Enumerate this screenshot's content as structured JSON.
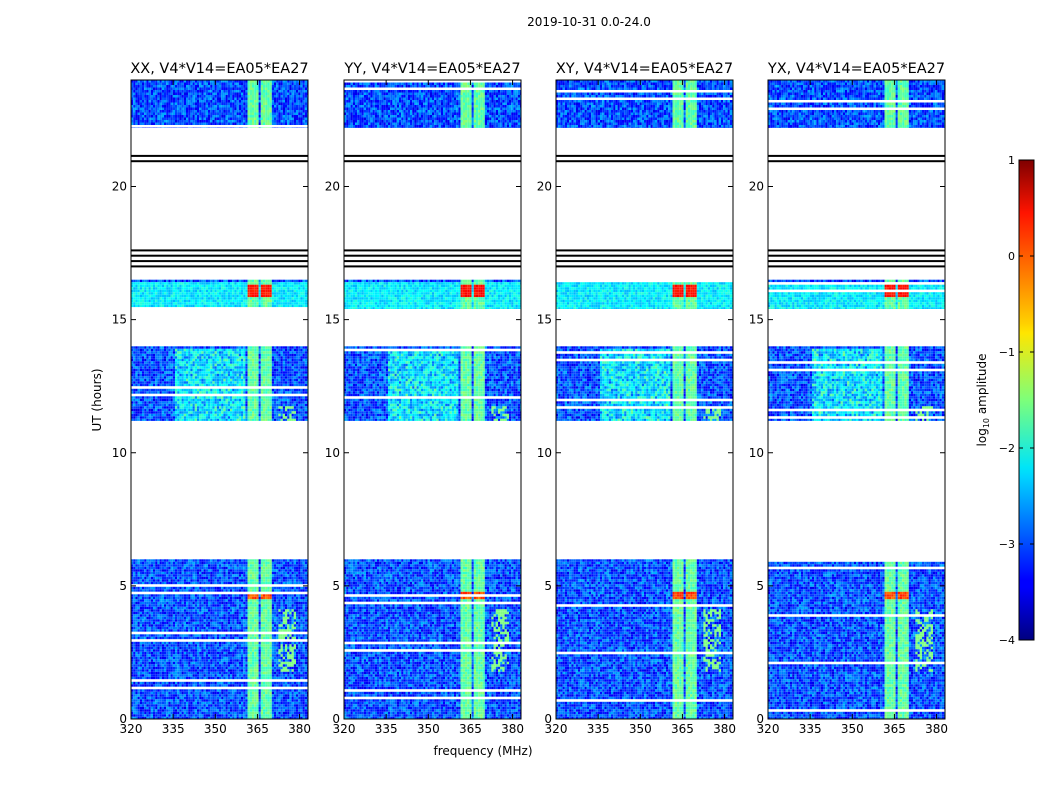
{
  "figure_title": "2019-10-31 0.0-24.0",
  "chart_data": {
    "type": "heatmap",
    "title": "2019-10-31 0.0-24.0",
    "xlabel": "frequency (MHz)",
    "ylabel": "UT (hours)",
    "xlim": [
      320,
      383
    ],
    "ylim": [
      0,
      24
    ],
    "xticks": [
      320,
      335,
      350,
      365,
      380
    ],
    "yticks": [
      0,
      5,
      10,
      15,
      20
    ],
    "colorbar": {
      "label": "log10 amplitude",
      "range": [
        -4,
        1
      ],
      "ticks": [
        -4,
        -3,
        -2,
        -1,
        0,
        1
      ],
      "tick_labels": [
        "−4",
        "−3",
        "−2",
        "−1",
        "0",
        "1"
      ],
      "colormap": "jet"
    },
    "panels": [
      {
        "title": "XX, V4*V14=EA05*EA27",
        "rfi_peak": 0.5
      },
      {
        "title": "YY, V4*V14=EA05*EA27",
        "rfi_peak": 0.62
      },
      {
        "title": "XY, V4*V14=EA05*EA27",
        "rfi_peak": 0.55
      },
      {
        "title": "YX, V4*V14=EA05*EA27",
        "rfi_peak": 0.55
      }
    ],
    "data_blocks_ut": [
      [
        0,
        6.0
      ],
      [
        11.2,
        14.0
      ],
      [
        15.4,
        16.5
      ],
      [
        22.2,
        24.0
      ]
    ],
    "flag_lines_ut": [
      17.0,
      17.2,
      17.4,
      17.6,
      20.95,
      21.15
    ],
    "rfi_channels_mhz": [
      [
        361.5,
        365
      ],
      [
        366,
        369.5
      ]
    ]
  }
}
